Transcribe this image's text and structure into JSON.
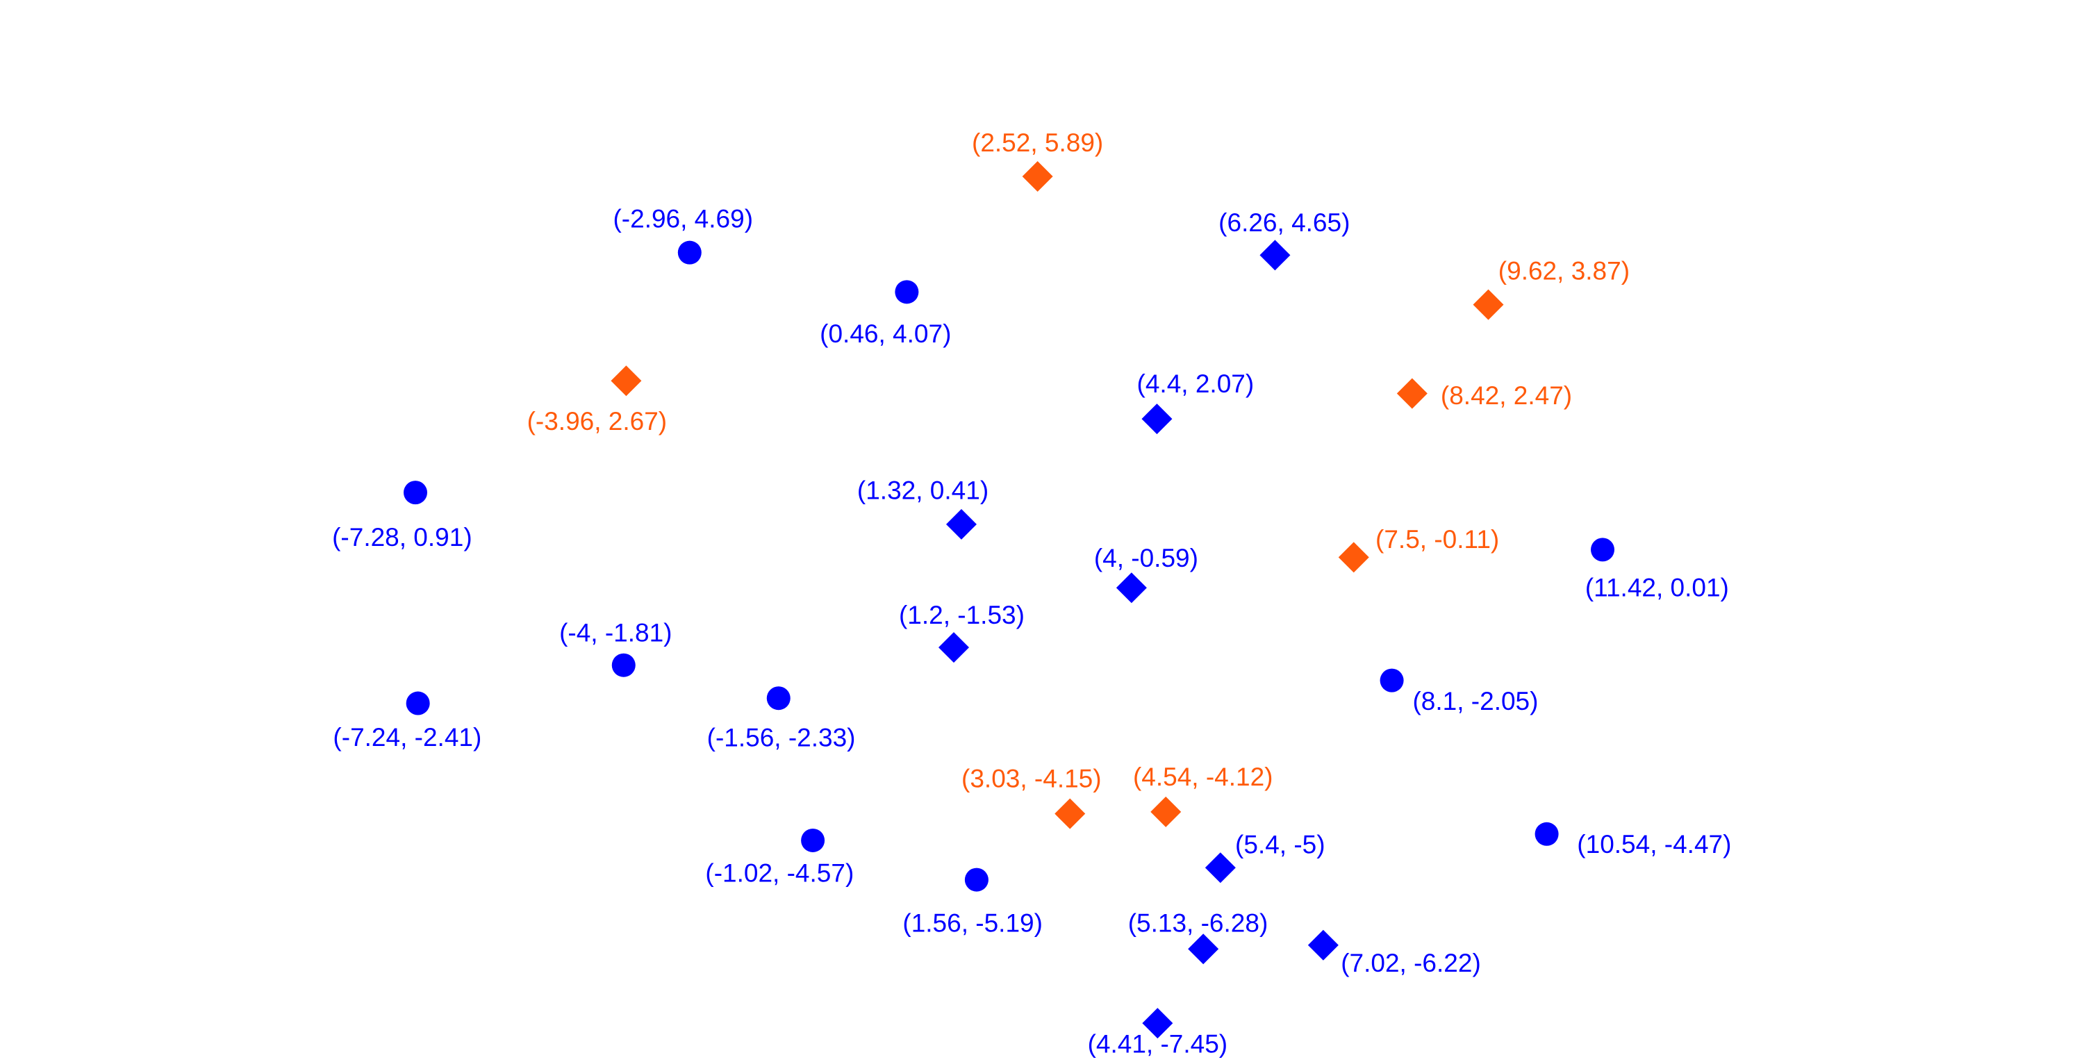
{
  "chart_data": {
    "type": "scatter",
    "series": [
      {
        "color": "#0000ff",
        "marker": "circle",
        "x": [
          -2.96,
          0.46,
          -7.28,
          11.42,
          -4,
          -7.24,
          -1.56,
          8.1,
          10.54,
          -1.02,
          1.56
        ],
        "values": [
          4.69,
          4.07,
          0.91,
          0.01,
          -1.81,
          -2.41,
          -2.33,
          -2.05,
          -4.47,
          -4.57,
          -5.19
        ],
        "value_labels": [
          "(-2.96, 4.69)",
          "(0.46, 4.07)",
          "(-7.28, 0.91)",
          "(11.42, 0.01)",
          "(-4, -1.81)",
          "(-7.24, -2.41)",
          "(-1.56, -2.33)",
          "(8.1, -2.05)",
          "(10.54, -4.47)",
          "(-1.02, -4.57)",
          "(1.56, -5.19)"
        ]
      },
      {
        "color": "#0000ff",
        "marker": "diamond",
        "x": [
          6.26,
          4.4,
          1.32,
          4,
          1.2,
          5.4,
          5.13,
          7.02,
          4.41
        ],
        "values": [
          4.65,
          2.07,
          0.41,
          -0.59,
          -1.53,
          -5,
          -6.28,
          -6.22,
          -7.45
        ],
        "value_labels": [
          "(6.26, 4.65)",
          "(4.4, 2.07)",
          "(1.32, 0.41)",
          "(4, -0.59)",
          "(1.2, -1.53)",
          "(5.4, -5)",
          "(5.13, -6.28)",
          "(7.02, -6.22)",
          "(4.41, -7.45)"
        ]
      },
      {
        "color": "#ff5a0a",
        "marker": "diamond",
        "x": [
          2.52,
          9.62,
          -3.96,
          8.42,
          7.5,
          3.03,
          4.54
        ],
        "values": [
          5.89,
          3.87,
          2.67,
          2.47,
          -0.11,
          -4.15,
          -4.12
        ],
        "value_labels": [
          "(2.52, 5.89)",
          "(9.62, 3.87)",
          "(-3.96, 2.67)",
          "(8.42, 2.47)",
          "(7.5, -0.11)",
          "(3.03, -4.15)",
          "(4.54, -4.12)"
        ]
      }
    ]
  }
}
